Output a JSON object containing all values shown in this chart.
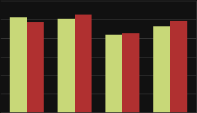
{
  "groups": [
    0,
    1,
    2,
    3
  ],
  "series1_values": [
    2034,
    2006,
    1672,
    1850
  ],
  "series2_values": [
    1939,
    2100,
    1700,
    1970
  ],
  "color1": "#c8d878",
  "color2": "#b03030",
  "background_color": "#111111",
  "ylim": [
    0,
    2400
  ],
  "bar_width": 0.35,
  "grid_color": "#444444",
  "grid_vals": [
    400,
    800,
    1200,
    1600,
    2000,
    2400
  ]
}
